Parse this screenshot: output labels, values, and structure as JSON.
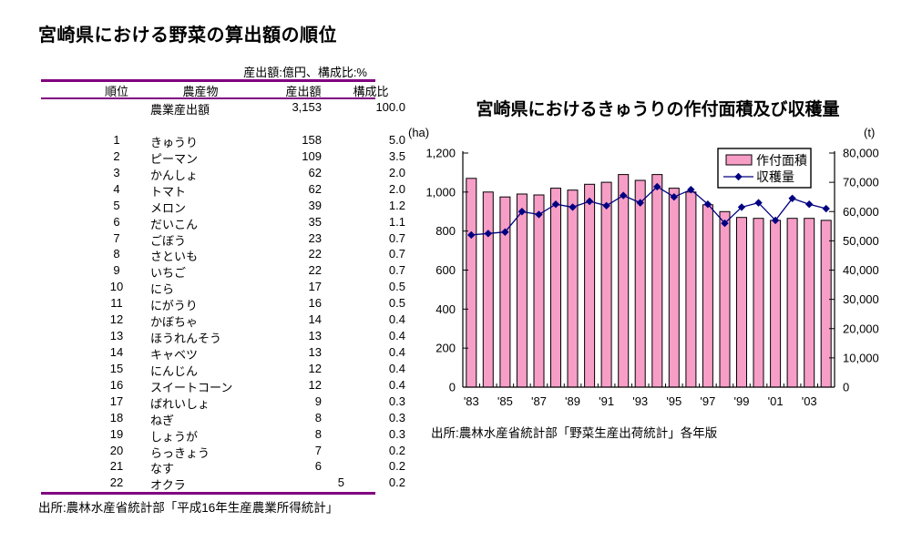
{
  "left_panel": {
    "title": "宮崎県における野菜の算出額の順位",
    "unit_note": "産出額:億円、構成比:%",
    "rule_color": "#800080",
    "table": {
      "headers": [
        "順位",
        "農産物",
        "産出額",
        "構成比"
      ],
      "total_row": {
        "name": "農業産出額",
        "value": "3,153",
        "share": "100.0"
      },
      "rows": [
        [
          "1",
          "きゅうり",
          "158",
          "5.0"
        ],
        [
          "2",
          "ピーマン",
          "109",
          "3.5"
        ],
        [
          "3",
          "かんしょ",
          "62",
          "2.0"
        ],
        [
          "4",
          "トマト",
          "62",
          "2.0"
        ],
        [
          "5",
          "メロン",
          "39",
          "1.2"
        ],
        [
          "6",
          "だいこん",
          "35",
          "1.1"
        ],
        [
          "7",
          "ごぼう",
          "23",
          "0.7"
        ],
        [
          "8",
          "さといも",
          "22",
          "0.7"
        ],
        [
          "9",
          "いちご",
          "22",
          "0.7"
        ],
        [
          "10",
          "にら",
          "17",
          "0.5"
        ],
        [
          "11",
          "にがうり",
          "16",
          "0.5"
        ],
        [
          "12",
          "かぼちゃ",
          "14",
          "0.4"
        ],
        [
          "13",
          "ほうれんそう",
          "13",
          "0.4"
        ],
        [
          "14",
          "キャベツ",
          "13",
          "0.4"
        ],
        [
          "15",
          "にんじん",
          "12",
          "0.4"
        ],
        [
          "16",
          "スイートコーン",
          "12",
          "0.4"
        ],
        [
          "17",
          "ばれいしょ",
          "9",
          "0.3"
        ],
        [
          "18",
          "ねぎ",
          "8",
          "0.3"
        ],
        [
          "19",
          "しょうが",
          "8",
          "0.3"
        ],
        [
          "20",
          "らっきょう",
          "7",
          "0.2"
        ],
        [
          "21",
          "なす",
          "6",
          "0.2"
        ],
        [
          "22",
          "オクラ",
          "5",
          "0.2"
        ]
      ]
    },
    "source": "出所:農林水産省統計部「平成16年生産農業所得統計」"
  },
  "chart_data": {
    "type": "bar",
    "title": "宮崎県におけるきゅうりの作付面積及び収穫量",
    "x": [
      1983,
      1984,
      1985,
      1986,
      1987,
      1988,
      1989,
      1990,
      1991,
      1992,
      1993,
      1994,
      1995,
      1996,
      1997,
      1998,
      1999,
      2000,
      2001,
      2002,
      2003,
      2004
    ],
    "x_tick_labels": [
      "'83",
      "'85",
      "'87",
      "'89",
      "'91",
      "'93",
      "'95",
      "'97",
      "'99",
      "'01",
      "'03"
    ],
    "series": [
      {
        "name": "作付面積",
        "type": "bar",
        "axis": "left",
        "unit": "ha",
        "color": "#F79EC7",
        "border_color": "#000000",
        "values": [
          1070,
          1000,
          975,
          990,
          985,
          1020,
          1010,
          1040,
          1050,
          1090,
          1060,
          1090,
          1020,
          1000,
          935,
          900,
          870,
          865,
          855,
          865,
          865,
          855
        ]
      },
      {
        "name": "収穫量",
        "type": "line",
        "axis": "right",
        "unit": "t",
        "color": "#000080",
        "marker": "diamond",
        "values": [
          52000,
          52500,
          53000,
          60000,
          59000,
          62500,
          61500,
          63500,
          62000,
          65500,
          63000,
          68500,
          65000,
          67500,
          62500,
          56000,
          61500,
          63000,
          57000,
          64500,
          62500,
          61000
        ]
      }
    ],
    "left_axis": {
      "label": "(ha)",
      "min": 0,
      "max": 1200,
      "tick_labels": [
        "0",
        "200",
        "400",
        "600",
        "800",
        "1,000",
        "1,200"
      ]
    },
    "right_axis": {
      "label": "(t)",
      "min": 0,
      "max": 80000,
      "tick_labels": [
        "0",
        "10,000",
        "20,000",
        "30,000",
        "40,000",
        "50,000",
        "60,000",
        "70,000",
        "80,000"
      ]
    },
    "grid": false,
    "legend": {
      "position": "top-right",
      "entries": [
        "作付面積",
        "収穫量"
      ]
    },
    "source": "出所:農林水産省統計部「野菜生産出荷統計」各年版"
  }
}
